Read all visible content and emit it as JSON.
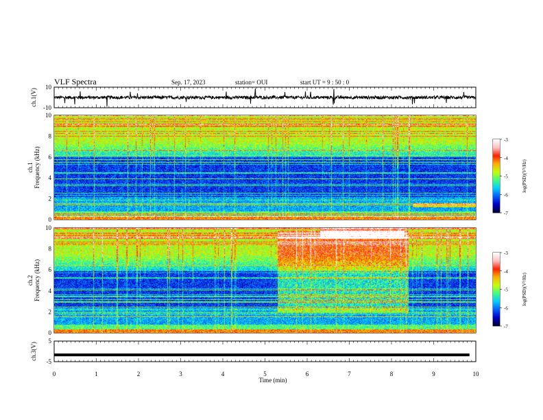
{
  "header": {
    "title": "VLF Spectra",
    "date": "Sep. 17, 2023",
    "station": "station= OUI",
    "start": "start UT =  9 : 50 : 0"
  },
  "chart_data": [
    {
      "type": "line",
      "panel": "ch1-waveform",
      "ylabel": "ch.1(V)",
      "ylim": [
        -10,
        10
      ],
      "yticks": [
        "10",
        "-10"
      ],
      "description_values": {
        "baseline": 0,
        "trace": "dense broadband noise near 0 V with occasional spikes"
      },
      "color": "#000000"
    },
    {
      "type": "heatmap",
      "panel": "ch1-spectrogram",
      "ylabel": "ch.1\nFrequency (kHz)",
      "ylim": [
        0,
        10
      ],
      "yticks": [
        "0",
        "2",
        "4",
        "6",
        "8",
        "10"
      ],
      "xlim": [
        0,
        10
      ],
      "colorbar": {
        "label": "log(PSD)(V²/Hz)",
        "ticks": [
          "-3",
          "-4",
          "-5",
          "-6",
          "-7"
        ],
        "range": [
          -7,
          -3
        ]
      }
    },
    {
      "type": "heatmap",
      "panel": "ch2-spectrogram",
      "ylabel": "ch.2\nFrequency (kHz)",
      "ylim": [
        0,
        10
      ],
      "yticks": [
        "0",
        "2",
        "4",
        "6",
        "8",
        "10"
      ],
      "xlim": [
        0,
        10
      ],
      "colorbar": {
        "label": "log(PSD)(V²/Hz)",
        "ticks": [
          "-3",
          "-4",
          "-5",
          "-6",
          "-7"
        ],
        "range": [
          -7,
          -3
        ]
      }
    },
    {
      "type": "line",
      "panel": "ch3-waveform",
      "ylabel": "ch.3(V)",
      "ylim": [
        -5,
        5
      ],
      "yticks": [
        "5",
        "-5"
      ],
      "x": [
        0,
        9.85
      ],
      "y": [
        -1.7,
        -1.7
      ],
      "color": "#000000"
    }
  ],
  "xaxis": {
    "label": "Time (min)",
    "ticks": [
      "0",
      "1",
      "2",
      "3",
      "4",
      "5",
      "6",
      "7",
      "8",
      "9",
      "10"
    ],
    "range": [
      0,
      10
    ]
  },
  "colors": {
    "background": "#ffffff",
    "axis": "#000000",
    "colormap": [
      "#000033",
      "#0000c8",
      "#0060ff",
      "#00d0ff",
      "#40ff80",
      "#c8ff00",
      "#ffb000",
      "#ff2000",
      "#ffc0c0",
      "#ffffff"
    ]
  }
}
